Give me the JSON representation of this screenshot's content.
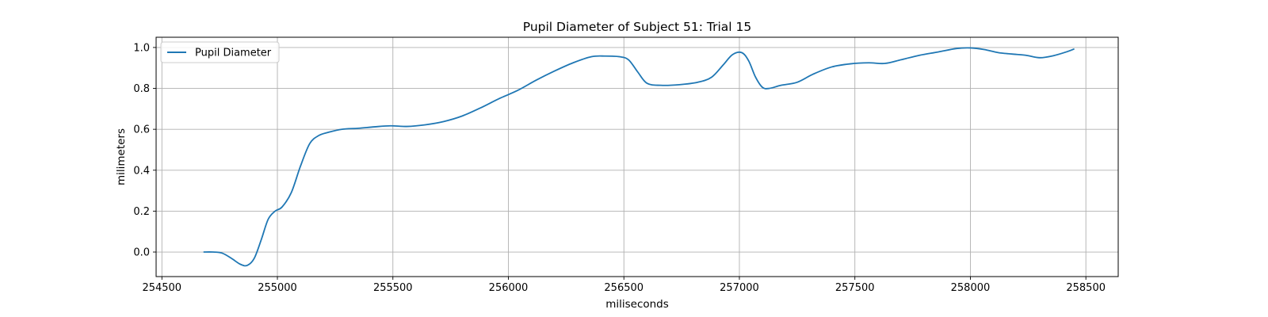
{
  "chart_data": {
    "type": "line",
    "title": "Pupil Diameter of Subject 51: Trial 15",
    "xlabel": "miliseconds",
    "ylabel": "milimeters",
    "xlim": [
      254475,
      258640
    ],
    "ylim": [
      -0.12,
      1.05
    ],
    "xticks": [
      254500,
      255000,
      255500,
      256000,
      256500,
      257000,
      257500,
      258000,
      258500
    ],
    "yticks": [
      0.0,
      0.2,
      0.4,
      0.6,
      0.8,
      1.0
    ],
    "xtick_labels": [
      "254500",
      "255000",
      "255500",
      "256000",
      "256500",
      "257000",
      "257500",
      "258000",
      "258500"
    ],
    "ytick_labels": [
      "0.0",
      "0.2",
      "0.4",
      "0.6",
      "0.8",
      "1.0"
    ],
    "grid": true,
    "legend_position": "upper-left",
    "series": [
      {
        "name": "Pupil Diameter",
        "color": "#1f77b4",
        "x": [
          254680,
          254720,
          254760,
          254800,
          254840,
          254870,
          254900,
          254930,
          254960,
          254990,
          255020,
          255060,
          255100,
          255140,
          255180,
          255220,
          255280,
          255350,
          255420,
          255490,
          255560,
          255640,
          255720,
          255800,
          255880,
          255960,
          256040,
          256120,
          256200,
          256280,
          256360,
          256420,
          256480,
          256520,
          256560,
          256600,
          256660,
          256740,
          256820,
          256880,
          256930,
          256970,
          257010,
          257040,
          257070,
          257100,
          257130,
          257180,
          257250,
          257320,
          257400,
          257480,
          257560,
          257630,
          257700,
          257780,
          257860,
          257940,
          258000,
          258060,
          258120,
          258180,
          258240,
          258300,
          258360,
          258420,
          258450
        ],
        "y": [
          0.0,
          0.0,
          -0.005,
          -0.03,
          -0.06,
          -0.065,
          -0.03,
          0.06,
          0.16,
          0.2,
          0.22,
          0.29,
          0.42,
          0.53,
          0.57,
          0.585,
          0.6,
          0.605,
          0.612,
          0.617,
          0.614,
          0.622,
          0.638,
          0.665,
          0.705,
          0.75,
          0.79,
          0.84,
          0.885,
          0.925,
          0.955,
          0.958,
          0.955,
          0.94,
          0.88,
          0.825,
          0.815,
          0.818,
          0.83,
          0.855,
          0.915,
          0.965,
          0.975,
          0.935,
          0.855,
          0.805,
          0.8,
          0.815,
          0.83,
          0.87,
          0.905,
          0.92,
          0.925,
          0.922,
          0.94,
          0.962,
          0.978,
          0.995,
          0.998,
          0.99,
          0.975,
          0.968,
          0.962,
          0.95,
          0.96,
          0.98,
          0.993
        ]
      }
    ]
  }
}
